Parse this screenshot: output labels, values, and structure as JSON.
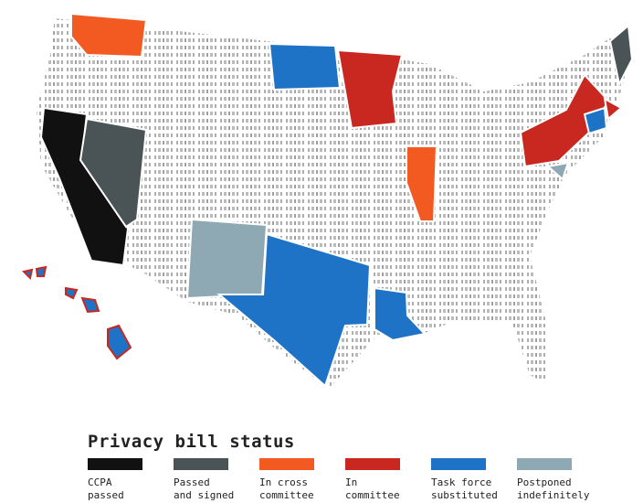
{
  "title": "Privacy bill status",
  "legend": [
    {
      "label": [
        "CCPA",
        "passed"
      ],
      "color": "#111111"
    },
    {
      "label": [
        "Passed",
        "and signed"
      ],
      "color": "#4a5457"
    },
    {
      "label": [
        "In cross",
        "committee"
      ],
      "color": "#f25a22"
    },
    {
      "label": [
        "In",
        "committee"
      ],
      "color": "#c8281f"
    },
    {
      "label": [
        "Task force",
        "substituted"
      ],
      "color": "#1f73c6"
    },
    {
      "label": [
        "Postponed",
        "indefinitely"
      ],
      "color": "#8ea9b3"
    }
  ]
}
